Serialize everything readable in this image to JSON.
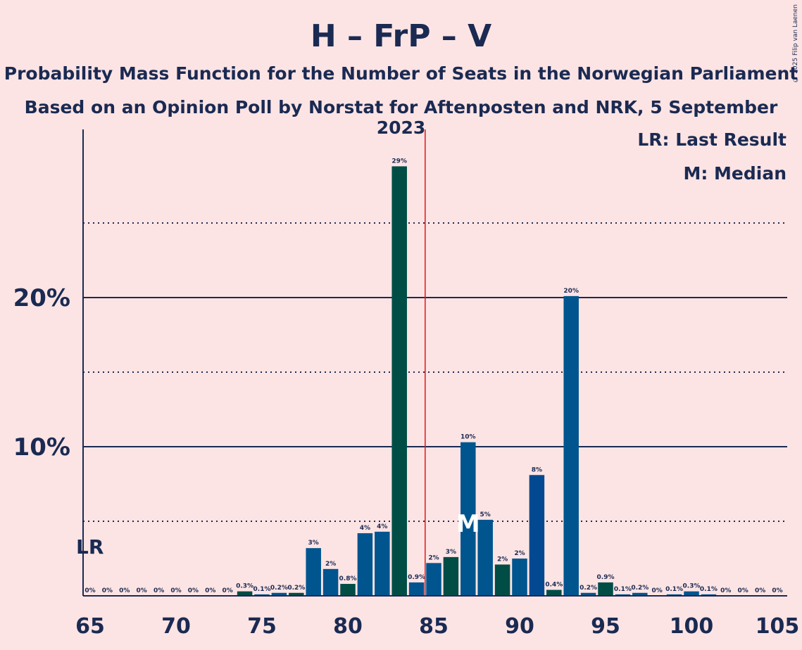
{
  "title": "H – FrP – V",
  "subtitle_line1": "Probability Mass Function for the Number of Seats in the Norwegian Parliament",
  "subtitle_line2": "Based on an Opinion Poll by Norstat for Aftenposten and NRK, 5 September 2023",
  "copyright": "© 2025 Filip van Laenen",
  "legend": {
    "last_result": "LR: Last Result",
    "median": "M: Median"
  },
  "markers": {
    "last_result_label": "LR",
    "last_result_seat": 65,
    "median_label": "M",
    "median_seat": 87,
    "majority_line_seat": 84.5
  },
  "colors": {
    "background": "#fde4e4",
    "text": "#1a2a52",
    "bar_h": "#00558f",
    "bar_frp": "#024991",
    "bar_v": "#004d46",
    "majority_line": "#e0171a"
  },
  "chart_data": {
    "type": "bar",
    "title": "H – FrP – V",
    "subtitle": "Probability Mass Function for the Number of Seats in the Norwegian Parliament",
    "xlim": [
      65,
      105
    ],
    "ylim": [
      0,
      31
    ],
    "x_ticks": [
      65,
      70,
      75,
      80,
      85,
      90,
      95,
      100,
      105
    ],
    "y_ticks": [
      {
        "value": 10,
        "label": "10%"
      },
      {
        "value": 20,
        "label": "20%"
      }
    ],
    "y_dotted_lines": [
      5,
      15,
      25
    ],
    "grid": true,
    "legend_position": "top-right",
    "series": [
      {
        "x": [
          65,
          66,
          67,
          68,
          69,
          70,
          71,
          72,
          73,
          74,
          75,
          76,
          77,
          78,
          79,
          80,
          81,
          82,
          83,
          84,
          85,
          86,
          87,
          88,
          89,
          90,
          91,
          92,
          93,
          94,
          95,
          96,
          97,
          98,
          99,
          100,
          101,
          102,
          103,
          104,
          105
        ],
        "values": [
          0,
          0,
          0,
          0,
          0,
          0,
          0,
          0,
          0,
          0.3,
          0.1,
          0.2,
          0.2,
          3.2,
          1.8,
          0.8,
          4.2,
          4.3,
          28.8,
          0.9,
          2.2,
          2.6,
          10.3,
          5.1,
          2.1,
          2.5,
          8.1,
          0.4,
          20.1,
          0.2,
          0.9,
          0.1,
          0.2,
          0,
          0.1,
          0.3,
          0.1,
          0,
          0,
          0,
          0
        ],
        "labels": [
          "0%",
          "0%",
          "0%",
          "0%",
          "0%",
          "0%",
          "0%",
          "0%",
          "0%",
          "0.3%",
          "0.1%",
          "0.2%",
          "0.2%",
          "3%",
          "2%",
          "0.8%",
          "4%",
          "4%",
          "29%",
          "0.9%",
          "2%",
          "3%",
          "10%",
          "5%",
          "2%",
          "2%",
          "8%",
          "0.4%",
          "20%",
          "0.2%",
          "0.9%",
          "0.1%",
          "0.2%",
          "0%",
          "0.1%",
          "0.3%",
          "0.1%",
          "0%",
          "0%",
          "0%",
          "0%"
        ],
        "colors": [
          "#00558f",
          "#00558f",
          "#00558f",
          "#00558f",
          "#00558f",
          "#00558f",
          "#00558f",
          "#00558f",
          "#00558f",
          "#004d46",
          "#00558f",
          "#00558f",
          "#004d46",
          "#00558f",
          "#00558f",
          "#004d46",
          "#00558f",
          "#00558f",
          "#004d46",
          "#00558f",
          "#00558f",
          "#004d46",
          "#00558f",
          "#00558f",
          "#004d46",
          "#00558f",
          "#024991",
          "#004d46",
          "#00558f",
          "#00558f",
          "#004d46",
          "#00558f",
          "#00558f",
          "#00558f",
          "#00558f",
          "#00558f",
          "#00558f",
          "#00558f",
          "#00558f",
          "#00558f",
          "#00558f"
        ]
      }
    ]
  }
}
